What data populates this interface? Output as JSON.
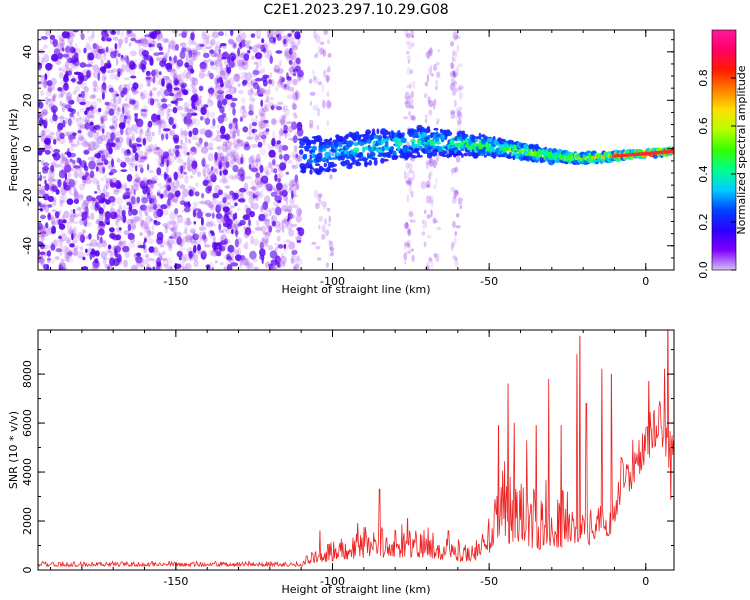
{
  "chart_data": [
    {
      "type": "heatmap",
      "title": "C2E1.2023.297.10.29.G08",
      "xlabel": "Height of straight line (km)",
      "ylabel": "Frequency (Hz)",
      "xlim": [
        -194,
        9
      ],
      "ylim": [
        -50,
        49
      ],
      "xticks": [
        -150,
        -100,
        -50,
        0
      ],
      "yticks": [
        -40,
        -20,
        0,
        20,
        40
      ],
      "grid": false,
      "colormap": "hsv-like (purple→blue→cyan→green→yellow→red→magenta)",
      "colors": {
        "noise": "#a24cf0",
        "noise_strong": "#5a06ee",
        "signal_low": "#1a32ff",
        "signal_mid": "#00e8c8",
        "signal_high": "#ff2a2a"
      },
      "noise_region_x": [
        -194,
        -110
      ],
      "sparse_noise_columns_x": [
        [
          -107,
          -100
        ],
        [
          -77,
          -74
        ],
        [
          -71,
          -66
        ],
        [
          -62,
          -59
        ]
      ],
      "signal_track": {
        "x": [
          -110,
          -100,
          -90,
          -80,
          -70,
          -60,
          -50,
          -40,
          -30,
          -20,
          -10,
          0,
          9
        ],
        "frequency": [
          -3,
          -2,
          0,
          2,
          3,
          2,
          1,
          -1,
          -3,
          -4,
          -3,
          -2,
          -1
        ],
        "band_half_width_hz": [
          8,
          7,
          7,
          6,
          6,
          5,
          4,
          3,
          2.5,
          2,
          1.5,
          1.2,
          1.2
        ],
        "normalized_amplitude": [
          0.25,
          0.3,
          0.35,
          0.35,
          0.35,
          0.38,
          0.45,
          0.5,
          0.55,
          0.62,
          0.75,
          0.95,
          0.9
        ]
      }
    },
    {
      "type": "colorbar",
      "label": "Normalized spectral amplitude",
      "range": [
        0,
        1
      ],
      "ticks": [
        "0.0",
        "0.2",
        "0.4",
        "0.6",
        "0.8"
      ],
      "tick_values": [
        0.0,
        0.2,
        0.4,
        0.6,
        0.8
      ],
      "gradient": [
        "#d6bff4",
        "#7f00ff",
        "#2a00ff",
        "#0044ff",
        "#00ccff",
        "#00ff90",
        "#33ff00",
        "#b6ff00",
        "#ffe000",
        "#ff8000",
        "#ff1a00",
        "#ff0066",
        "#ff1a9c"
      ]
    },
    {
      "type": "line",
      "title": "",
      "xlabel": "Height of straight line (km)",
      "ylabel": "SNR (10 * v/v)",
      "xlim": [
        -194,
        9
      ],
      "ylim": [
        0,
        9800
      ],
      "xticks": [
        -150,
        -100,
        -50,
        0
      ],
      "yticks": [
        0,
        2000,
        4000,
        6000,
        8000
      ],
      "grid": false,
      "series": [
        {
          "color": "#ee2222",
          "envelope": {
            "x": [
              -194,
              -150,
              -110,
              -105,
              -100,
              -90,
              -80,
              -70,
              -60,
              -55,
              -50,
              -47,
              -45,
              -43,
              -40,
              -35,
              -30,
              -25,
              -22,
              -20,
              -18,
              -15,
              -12,
              -10,
              -8,
              -5,
              -3,
              0,
              2,
              5,
              6,
              7,
              8,
              9
            ],
            "low": [
              150,
              150,
              150,
              300,
              350,
              500,
              500,
              500,
              350,
              350,
              600,
              1300,
              900,
              1000,
              1000,
              800,
              1000,
              700,
              1000,
              1500,
              1000,
              1500,
              1200,
              1800,
              2800,
              3200,
              3700,
              4300,
              4800,
              5000,
              4900,
              4000,
              4500,
              4800
            ],
            "high": [
              350,
              350,
              350,
              1000,
              1200,
              1800,
              1900,
              1900,
              1300,
              1000,
              2500,
              3800,
              5500,
              4000,
              3800,
              4000,
              3500,
              3200,
              2800,
              3000,
              2500,
              2700,
              2500,
              3400,
              4800,
              5600,
              6300,
              6200,
              6800,
              7000,
              6400,
              6300,
              5900,
              6000
            ]
          },
          "spikes": [
            {
              "x": -104,
              "y": 1600
            },
            {
              "x": -92,
              "y": 1900
            },
            {
              "x": -85,
              "y": 3300
            },
            {
              "x": -76,
              "y": 2100
            },
            {
              "x": -63,
              "y": 1600
            },
            {
              "x": -47,
              "y": 5900
            },
            {
              "x": -44,
              "y": 7600
            },
            {
              "x": -42,
              "y": 6000
            },
            {
              "x": -38,
              "y": 5300
            },
            {
              "x": -35,
              "y": 5900
            },
            {
              "x": -31,
              "y": 7800
            },
            {
              "x": -27,
              "y": 5900
            },
            {
              "x": -22,
              "y": 8800
            },
            {
              "x": -21,
              "y": 9550
            },
            {
              "x": -19,
              "y": 6800
            },
            {
              "x": -14,
              "y": 8200
            },
            {
              "x": -11,
              "y": 8000
            },
            {
              "x": 1,
              "y": 7700
            },
            {
              "x": 6,
              "y": 8200
            },
            {
              "x": 7,
              "y": 9800
            },
            {
              "x": 8,
              "y": 2900
            }
          ]
        }
      ]
    }
  ]
}
